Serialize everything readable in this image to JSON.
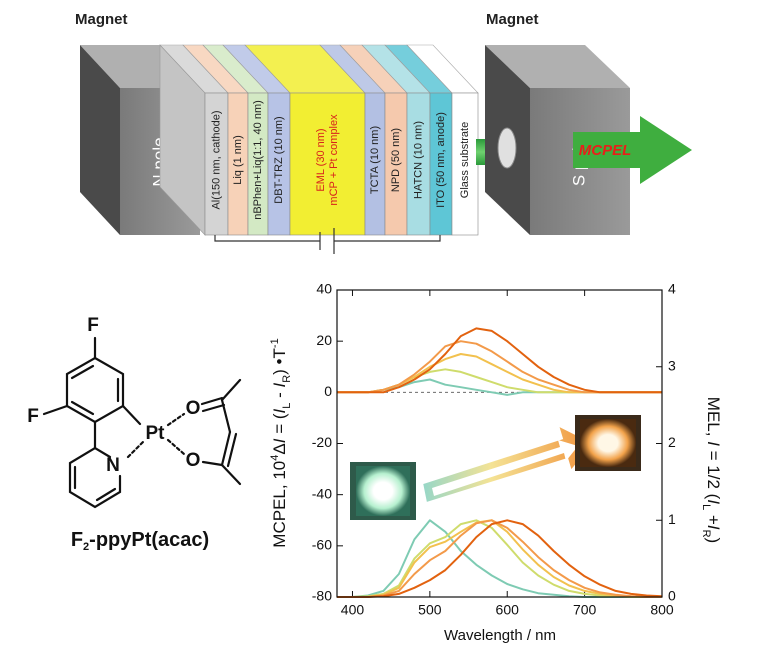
{
  "device": {
    "magnet_left": "Magnet",
    "magnet_right": "Magnet",
    "n_pole": "N pole",
    "s_pole": "S pole",
    "output": "MCPEL",
    "layers": [
      {
        "lines": [
          "Al(150 nm, cathode)"
        ],
        "color": "#d4d4d4"
      },
      {
        "lines": [
          "Liq (1 nm)"
        ],
        "color": "#f7d2b8"
      },
      {
        "lines": [
          "nBPhen+Liq(1:1, 40 nm)"
        ],
        "color": "#d3e9c4"
      },
      {
        "lines": [
          "DBT-TRZ (10 nm)"
        ],
        "color": "#b7c3e6"
      },
      {
        "lines": [
          "EML (30 nm)",
          "mCP + Pt complex"
        ],
        "color": "#f2ee32",
        "text_color": "#d8231c"
      },
      {
        "lines": [
          "TCTA (10 nm)"
        ],
        "color": "#b3c0e3"
      },
      {
        "lines": [
          "NPD (50 nm)"
        ],
        "color": "#f5c9ad"
      },
      {
        "lines": [
          "HATCN (10 nm)"
        ],
        "color": "#a8dde3"
      },
      {
        "lines": [
          "ITO (50 nm, anode)"
        ],
        "color": "#5ec6d6"
      },
      {
        "lines": [
          "Glass substrate"
        ],
        "color": "#ffffff"
      }
    ]
  },
  "molecule": {
    "atoms": [
      "F",
      "F",
      "Pt",
      "N",
      "O",
      "O"
    ],
    "name_parts": [
      "F",
      "2",
      "-ppyPt(acac)"
    ]
  },
  "chart_data": {
    "type": "line",
    "xlabel": "Wavelength / nm",
    "ylabel_parts": [
      "MCPEL, 10",
      "4",
      "Δ",
      "I",
      " = (",
      "I",
      "L",
      " - ",
      "I",
      "R",
      ") •T",
      "-1"
    ],
    "y2label_parts": [
      "MEL, ",
      "I",
      " = 1/2 (",
      "I",
      "L",
      " +",
      "I",
      "R",
      ")"
    ],
    "x": [
      380,
      400,
      420,
      440,
      460,
      480,
      500,
      520,
      540,
      560,
      580,
      600,
      620,
      640,
      660,
      680,
      700,
      720,
      740,
      760,
      780,
      800
    ],
    "xlim": [
      380,
      800
    ],
    "xticks": [
      400,
      500,
      600,
      700,
      800
    ],
    "ylim": [
      -80,
      40
    ],
    "yticks": [
      -80,
      -60,
      -40,
      -20,
      0,
      20,
      40
    ],
    "y2lim": [
      0,
      4
    ],
    "y2ticks": [
      0,
      1,
      2,
      3,
      4
    ],
    "series": [
      {
        "color": "#7ecbb3",
        "values": [
          0,
          0,
          0,
          1,
          2,
          4,
          5,
          3,
          2,
          1,
          0,
          -1,
          0,
          0,
          0,
          0,
          0,
          0,
          0,
          0,
          0,
          0
        ]
      },
      {
        "color": "#cfdc6c",
        "values": [
          0,
          0,
          0,
          1,
          3,
          6,
          8,
          9,
          8,
          6,
          4,
          2,
          1,
          0,
          0,
          0,
          0,
          0,
          0,
          0,
          0,
          0
        ]
      },
      {
        "color": "#f2c14e",
        "values": [
          0,
          0,
          0,
          1,
          3,
          6,
          10,
          13,
          15,
          14,
          11,
          8,
          5,
          3,
          1,
          0,
          0,
          0,
          0,
          0,
          0,
          0
        ]
      },
      {
        "color": "#f39a4a",
        "values": [
          0,
          0,
          0,
          1,
          3,
          7,
          12,
          18,
          20,
          19,
          16,
          12,
          8,
          5,
          3,
          1,
          0,
          0,
          0,
          0,
          0,
          0
        ]
      },
      {
        "color": "#e2620f",
        "values": [
          0,
          0,
          0,
          0,
          2,
          5,
          9,
          15,
          22,
          25,
          24,
          20,
          15,
          10,
          6,
          3,
          1,
          0,
          0,
          0,
          0,
          0
        ]
      },
      {
        "color": "#7ecbb3",
        "axis": "y2",
        "values": [
          0,
          0,
          0.02,
          0.08,
          0.3,
          0.75,
          1.0,
          0.85,
          0.6,
          0.42,
          0.28,
          0.17,
          0.1,
          0.05,
          0.03,
          0.01,
          0,
          0,
          0,
          0,
          0,
          0
        ]
      },
      {
        "color": "#cfdc6c",
        "axis": "y2",
        "values": [
          0,
          0,
          0.01,
          0.04,
          0.15,
          0.5,
          0.7,
          0.78,
          0.95,
          1.0,
          0.9,
          0.68,
          0.45,
          0.28,
          0.16,
          0.08,
          0.04,
          0.02,
          0.01,
          0,
          0,
          0
        ]
      },
      {
        "color": "#f2c14e",
        "axis": "y2",
        "values": [
          0,
          0,
          0,
          0.03,
          0.12,
          0.45,
          0.65,
          0.72,
          0.85,
          0.97,
          1.0,
          0.85,
          0.62,
          0.42,
          0.26,
          0.15,
          0.08,
          0.04,
          0.02,
          0.01,
          0,
          0
        ]
      },
      {
        "color": "#f39a4a",
        "axis": "y2",
        "values": [
          0,
          0,
          0,
          0.02,
          0.08,
          0.3,
          0.48,
          0.6,
          0.8,
          0.96,
          1.0,
          0.9,
          0.72,
          0.52,
          0.35,
          0.22,
          0.12,
          0.06,
          0.03,
          0.01,
          0,
          0
        ]
      },
      {
        "color": "#e2620f",
        "axis": "y2",
        "values": [
          0,
          0,
          0,
          0.01,
          0.04,
          0.12,
          0.22,
          0.35,
          0.55,
          0.78,
          0.95,
          1.0,
          0.95,
          0.8,
          0.6,
          0.42,
          0.27,
          0.16,
          0.08,
          0.04,
          0.02,
          0.01
        ]
      }
    ]
  }
}
